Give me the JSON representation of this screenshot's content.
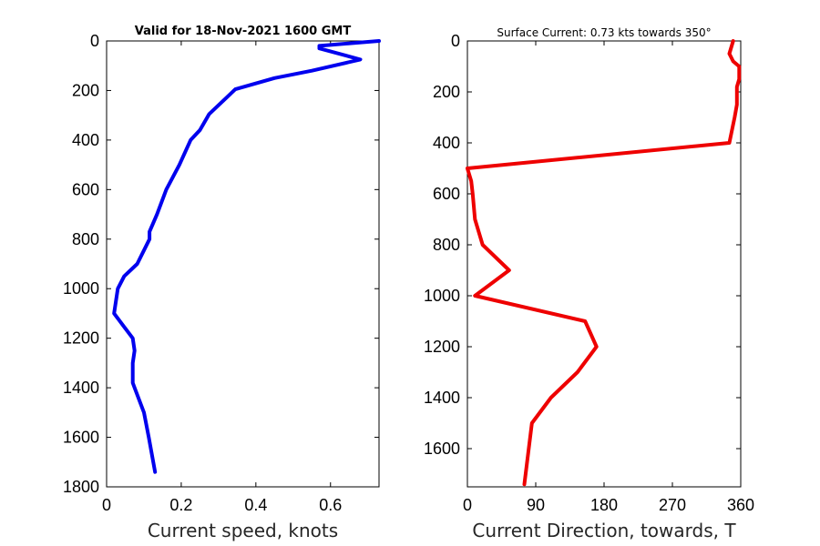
{
  "chart_data": [
    {
      "type": "line",
      "title": "Valid for 18-Nov-2021 1600 GMT",
      "xlabel": "Current speed, knots",
      "ylabel": "",
      "xlim": [
        0,
        0.73
      ],
      "ylim": [
        0,
        1800
      ],
      "y_reversed": true,
      "xticks": [
        0,
        0.2,
        0.4,
        0.6
      ],
      "xtick_labels": [
        "0",
        "0.2",
        "0.4",
        "0.6"
      ],
      "yticks": [
        0,
        200,
        400,
        600,
        800,
        1000,
        1200,
        1400,
        1600,
        1800
      ],
      "ytick_labels": [
        "0",
        "200",
        "400",
        "600",
        "800",
        "1000",
        "1200",
        "1400",
        "1600",
        "1800"
      ],
      "grid": false,
      "series": [
        {
          "color": "#0000ee",
          "x": [
            0.73,
            0.57,
            0.57,
            0.68,
            0.55,
            0.45,
            0.345,
            0.275,
            0.25,
            0.225,
            0.195,
            0.16,
            0.135,
            0.115,
            0.115,
            0.082,
            0.047,
            0.03,
            0.02,
            0.045,
            0.07,
            0.075,
            0.07,
            0.07,
            0.075,
            0.1,
            0.113,
            0.13
          ],
          "y": [
            0,
            20,
            30,
            75,
            120,
            150,
            195,
            295,
            360,
            400,
            500,
            600,
            700,
            770,
            800,
            900,
            950,
            1000,
            1100,
            1150,
            1200,
            1250,
            1300,
            1380,
            1400,
            1500,
            1600,
            1740
          ]
        }
      ]
    },
    {
      "type": "line",
      "title": "Surface Current: 0.73 kts towards 350°",
      "xlabel": "Current Direction, towards, T",
      "ylabel": "",
      "xlim": [
        0,
        360
      ],
      "ylim": [
        0,
        1750
      ],
      "y_reversed": true,
      "xticks": [
        0,
        90,
        180,
        270,
        360
      ],
      "xtick_labels": [
        "0",
        "90",
        "180",
        "270",
        "360"
      ],
      "yticks": [
        0,
        200,
        400,
        600,
        800,
        1000,
        1200,
        1400,
        1600
      ],
      "ytick_labels": [
        "0",
        "200",
        "400",
        "600",
        "800",
        "1000",
        "1200",
        "1400",
        "1600"
      ],
      "grid": false,
      "series": [
        {
          "color": "#ee0000",
          "x": [
            350,
            345,
            350,
            358,
            358,
            355,
            355,
            352,
            345,
            0,
            5,
            7,
            10,
            20,
            55,
            10,
            155,
            170,
            145,
            110,
            85,
            75
          ],
          "y": [
            0,
            50,
            80,
            100,
            150,
            180,
            250,
            300,
            400,
            500,
            550,
            600,
            700,
            800,
            900,
            1000,
            1100,
            1200,
            1300,
            1400,
            1500,
            1740
          ]
        }
      ]
    }
  ]
}
